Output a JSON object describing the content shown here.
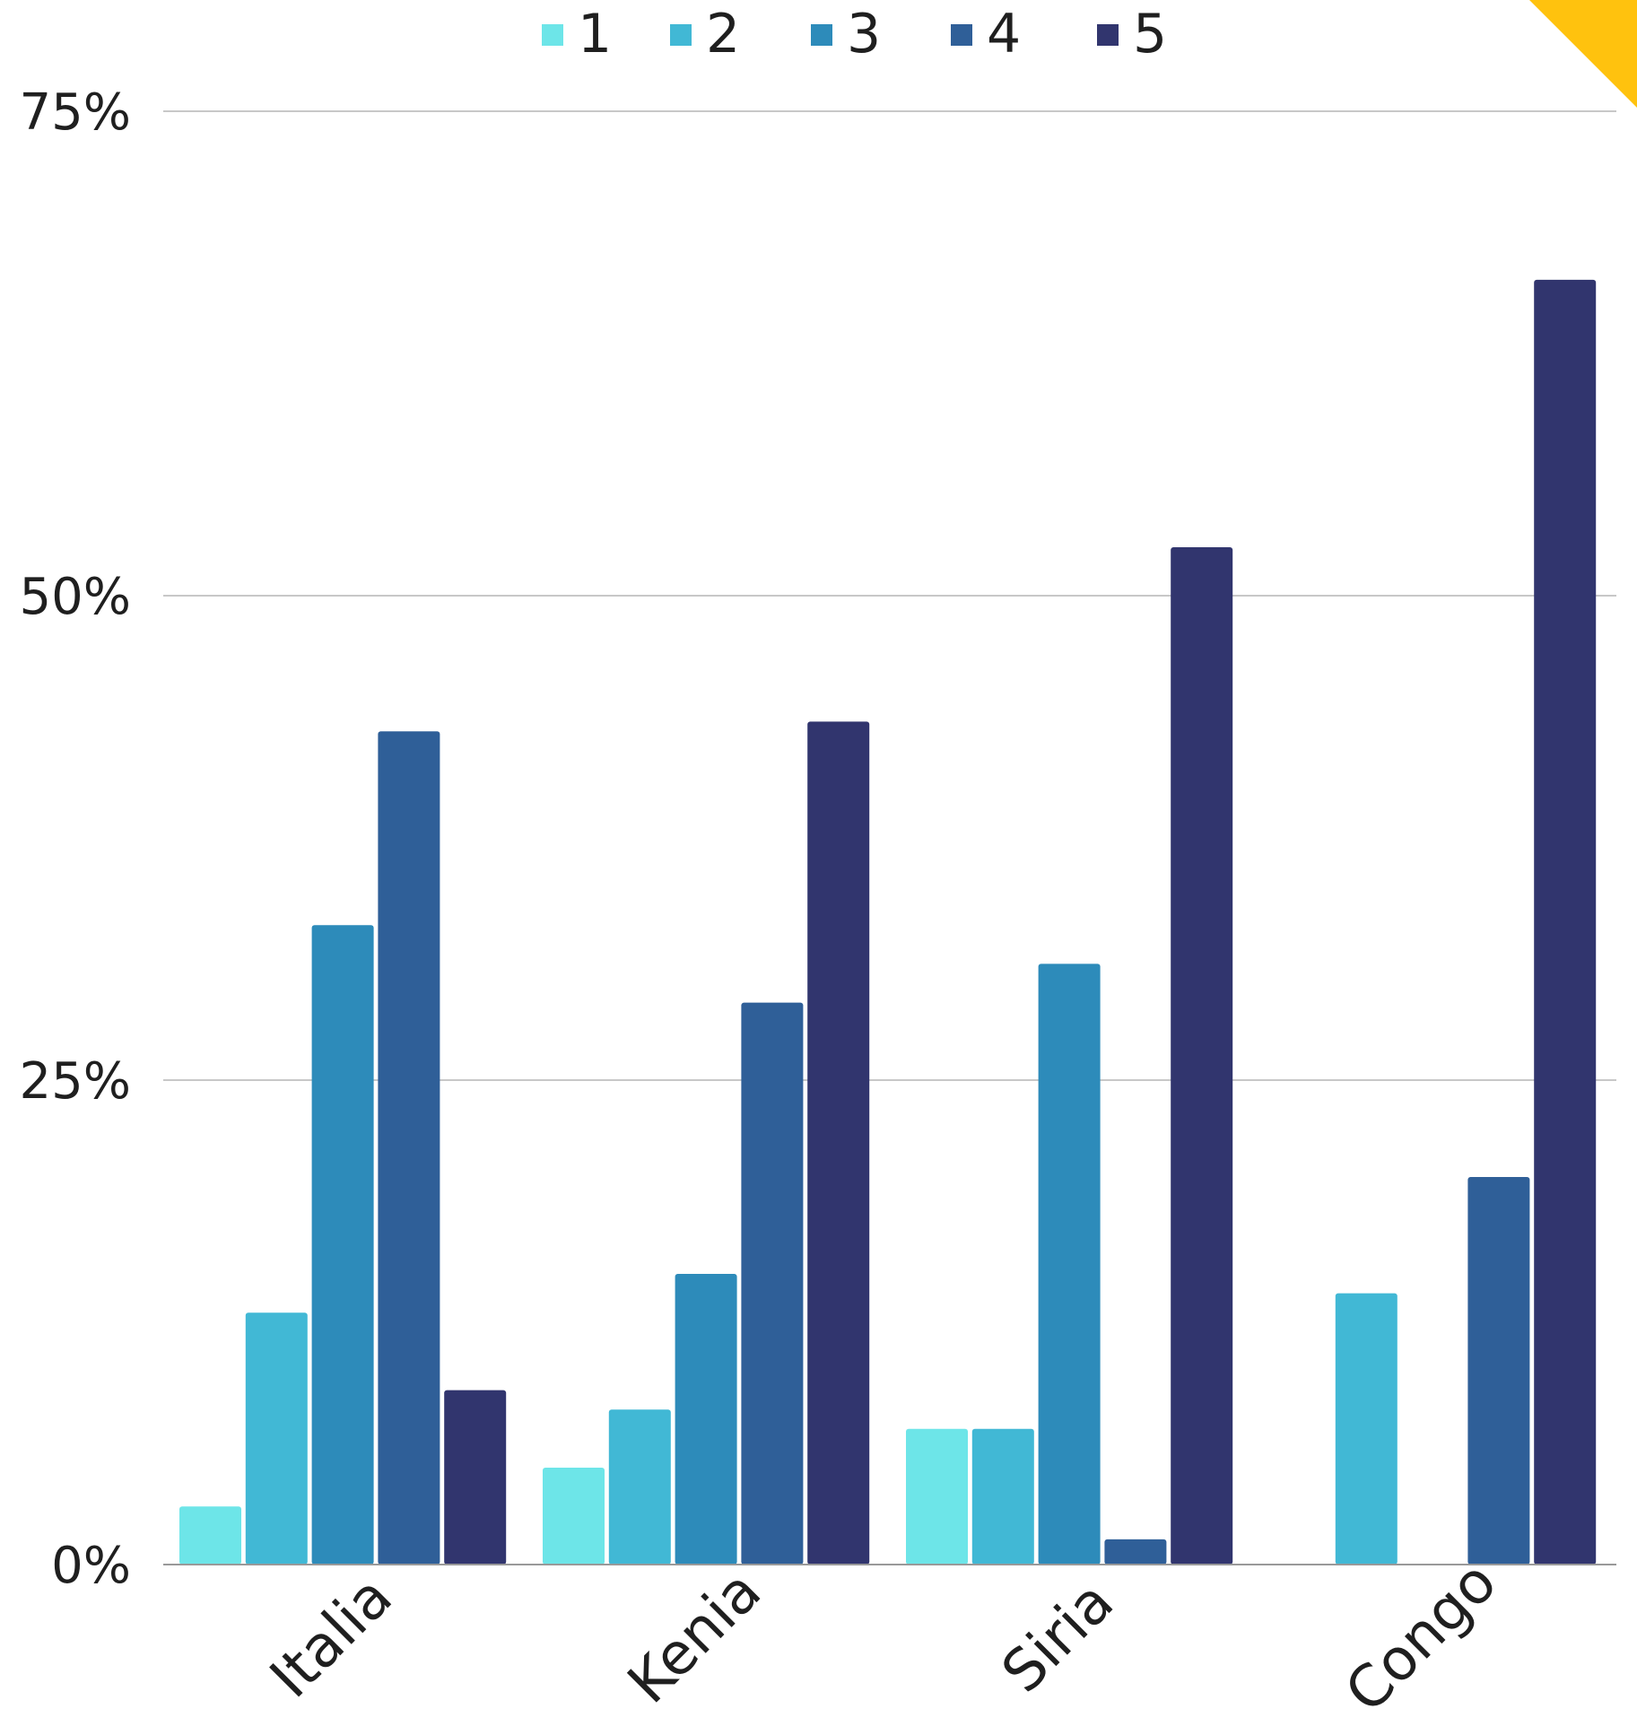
{
  "chart_data": {
    "type": "bar",
    "title": "",
    "xlabel": "",
    "ylabel": "",
    "categories": [
      "Italia",
      "Kenia",
      "Siria",
      "Congo"
    ],
    "ylim": [
      0,
      75
    ],
    "yticks": [
      0,
      25,
      50,
      75
    ],
    "ytick_labels": [
      "0%",
      "25%",
      "50%",
      "75%"
    ],
    "grid": true,
    "legend_position": "top-center",
    "series": [
      {
        "name": "1",
        "color": "#6de5e8",
        "values": [
          3,
          5,
          7,
          0
        ]
      },
      {
        "name": "2",
        "color": "#41b8d5",
        "values": [
          13,
          8,
          7,
          14
        ]
      },
      {
        "name": "3",
        "color": "#2d8bba",
        "values": [
          33,
          15,
          31,
          0
        ]
      },
      {
        "name": "4",
        "color": "#2f5f98",
        "values": [
          43,
          29,
          1.3,
          20
        ]
      },
      {
        "name": "5",
        "color": "#31356e",
        "values": [
          9,
          43.5,
          52.5,
          66.3
        ]
      }
    ]
  },
  "decoration": {
    "corner_accent_color": "#ffc20e"
  }
}
